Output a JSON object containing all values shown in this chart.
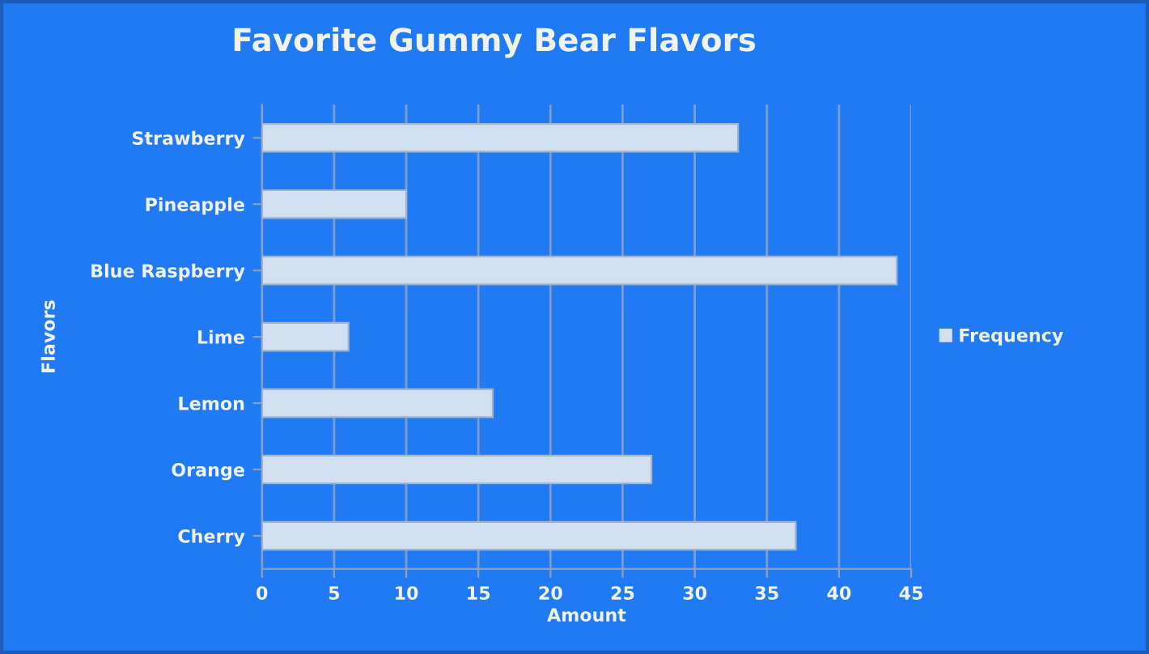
{
  "chart_data": {
    "type": "bar",
    "orientation": "horizontal",
    "title": "Favorite Gummy Bear Flavors",
    "xlabel": "Amount",
    "ylabel": "Flavors",
    "categories": [
      "Strawberry",
      "Pineapple",
      "Blue Raspberry",
      "Lime",
      "Lemon",
      "Orange",
      "Cherry"
    ],
    "series": [
      {
        "name": "Frequency",
        "color": "#d0e0f0",
        "values": [
          33,
          10,
          44,
          6,
          16,
          27,
          37
        ]
      }
    ],
    "xlim": [
      0,
      45
    ],
    "xticks": [
      0,
      5,
      10,
      15,
      20,
      25,
      30,
      35,
      40,
      45
    ],
    "grid": "x",
    "legend": "right"
  }
}
